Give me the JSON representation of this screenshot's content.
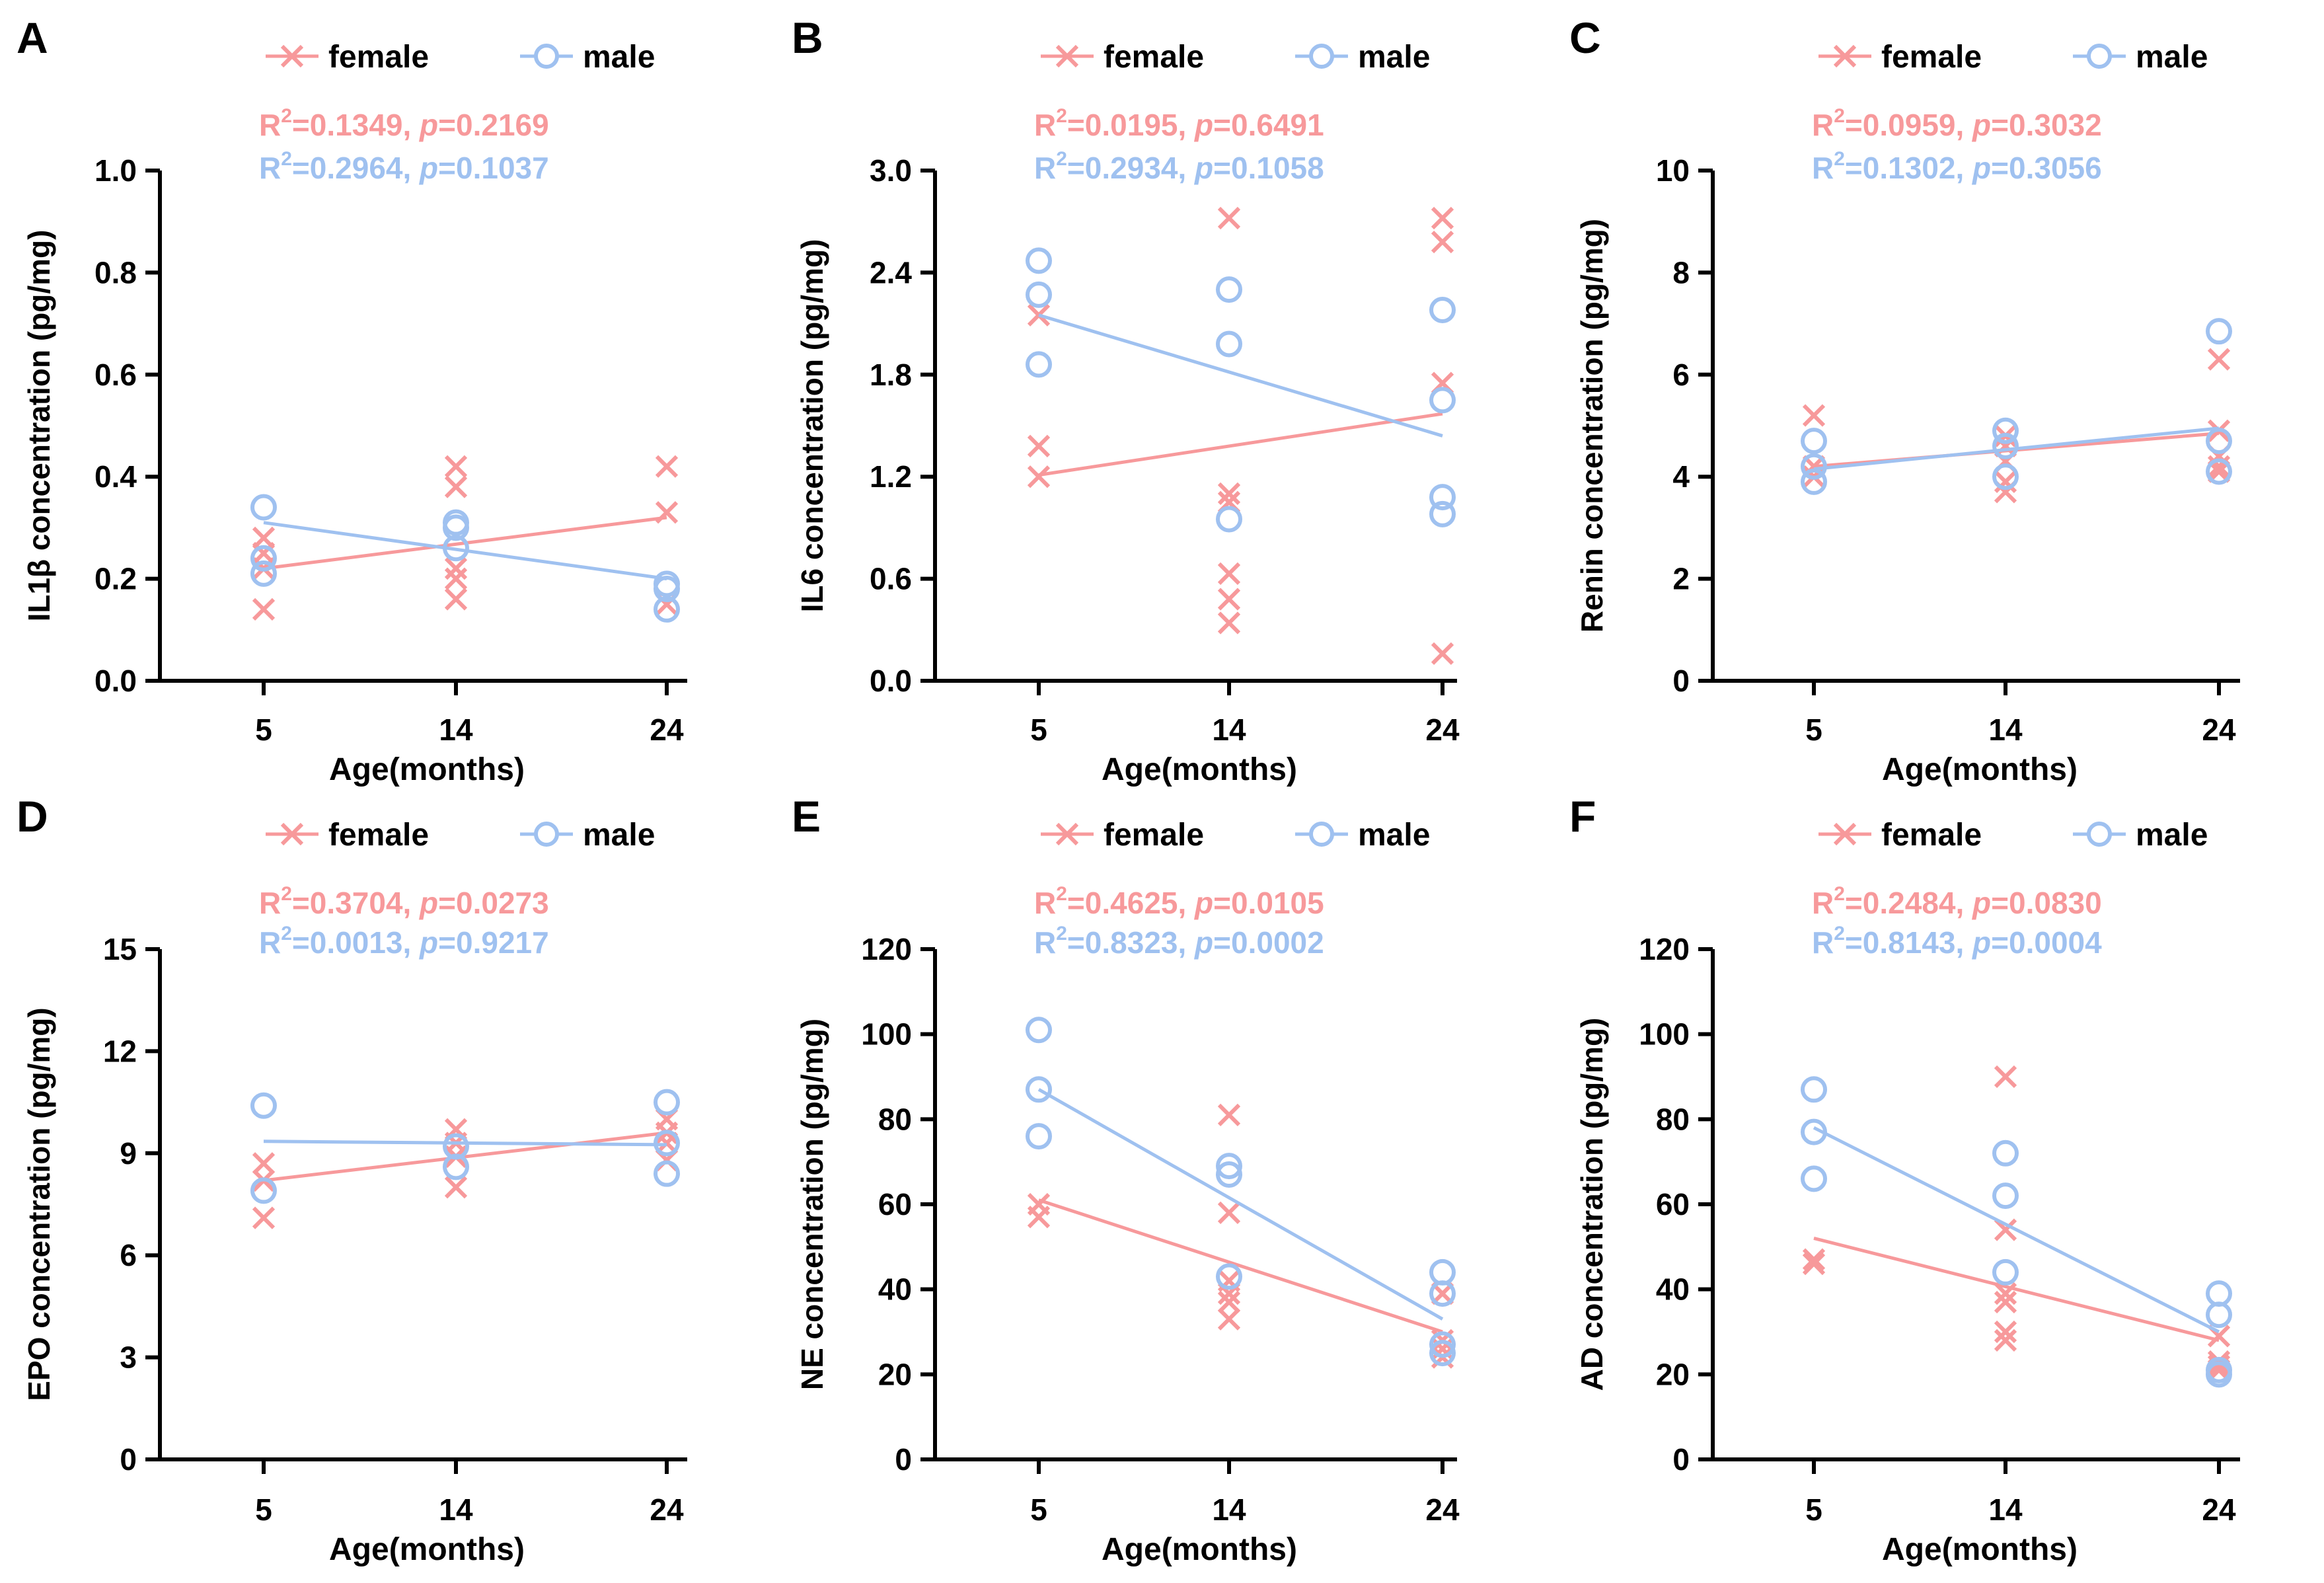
{
  "colors": {
    "female": "#f7999b",
    "male": "#9fc1f0",
    "axis": "#000000"
  },
  "legend": {
    "female_label": "female",
    "male_label": "male"
  },
  "chart_data": [
    {
      "type": "scatter",
      "panel_label": "A",
      "ylabel": "IL1β concentration (pg/mg)",
      "xlabel": "Age(months)",
      "categories": [
        "5",
        "14",
        "24"
      ],
      "ylim": [
        0,
        1.0
      ],
      "yticks": [
        "0.0",
        "0.2",
        "0.4",
        "0.6",
        "0.8",
        "1.0"
      ],
      "ytick_values": [
        0,
        0.2,
        0.4,
        0.6,
        0.8,
        1.0
      ],
      "stats": {
        "female": {
          "r2": "0.1349",
          "p": "0.2169"
        },
        "male": {
          "r2": "0.2964",
          "p": "0.1037"
        }
      },
      "series": [
        {
          "name": "female",
          "marker": "x",
          "points": [
            [
              5,
              0.28
            ],
            [
              5,
              0.25
            ],
            [
              5,
              0.22
            ],
            [
              5,
              0.14
            ],
            [
              14,
              0.42
            ],
            [
              14,
              0.38
            ],
            [
              14,
              0.22
            ],
            [
              14,
              0.2
            ],
            [
              14,
              0.16
            ],
            [
              24,
              0.42
            ],
            [
              24,
              0.33
            ],
            [
              24,
              0.15
            ]
          ],
          "fit": [
            [
              5,
              0.22
            ],
            [
              24,
              0.32
            ]
          ]
        },
        {
          "name": "male",
          "marker": "o",
          "points": [
            [
              5,
              0.34
            ],
            [
              5,
              0.24
            ],
            [
              5,
              0.21
            ],
            [
              14,
              0.31
            ],
            [
              14,
              0.3
            ],
            [
              14,
              0.26
            ],
            [
              24,
              0.19
            ],
            [
              24,
              0.18
            ],
            [
              24,
              0.14
            ]
          ],
          "fit": [
            [
              5,
              0.31
            ],
            [
              24,
              0.2
            ]
          ]
        }
      ]
    },
    {
      "type": "scatter",
      "panel_label": "B",
      "ylabel": "IL6 concentration (pg/mg)",
      "xlabel": "Age(months)",
      "categories": [
        "5",
        "14",
        "24"
      ],
      "ylim": [
        0,
        3.0
      ],
      "yticks": [
        "0.0",
        "0.6",
        "1.2",
        "1.8",
        "2.4",
        "3.0"
      ],
      "ytick_values": [
        0,
        0.6,
        1.2,
        1.8,
        2.4,
        3.0
      ],
      "stats": {
        "female": {
          "r2": "0.0195",
          "p": "0.6491"
        },
        "male": {
          "r2": "0.2934",
          "p": "0.1058"
        }
      },
      "series": [
        {
          "name": "female",
          "marker": "x",
          "points": [
            [
              5,
              2.15
            ],
            [
              5,
              1.38
            ],
            [
              5,
              1.2
            ],
            [
              14,
              2.72
            ],
            [
              14,
              1.1
            ],
            [
              14,
              1.05
            ],
            [
              14,
              0.63
            ],
            [
              14,
              0.48
            ],
            [
              14,
              0.34
            ],
            [
              24,
              2.72
            ],
            [
              24,
              2.58
            ],
            [
              24,
              1.75
            ],
            [
              24,
              0.16
            ]
          ],
          "fit": [
            [
              5,
              1.21
            ],
            [
              24,
              1.57
            ]
          ]
        },
        {
          "name": "male",
          "marker": "o",
          "points": [
            [
              5,
              2.47
            ],
            [
              5,
              2.27
            ],
            [
              5,
              1.86
            ],
            [
              14,
              2.3
            ],
            [
              14,
              1.98
            ],
            [
              14,
              0.95
            ],
            [
              24,
              2.18
            ],
            [
              24,
              1.65
            ],
            [
              24,
              1.08
            ],
            [
              24,
              0.98
            ]
          ],
          "fit": [
            [
              5,
              2.15
            ],
            [
              24,
              1.44
            ]
          ]
        }
      ]
    },
    {
      "type": "scatter",
      "panel_label": "C",
      "ylabel": "Renin concentration (pg/mg)",
      "xlabel": "Age(months)",
      "categories": [
        "5",
        "14",
        "24"
      ],
      "ylim": [
        0,
        10
      ],
      "yticks": [
        "0",
        "2",
        "4",
        "6",
        "8",
        "10"
      ],
      "ytick_values": [
        0,
        2,
        4,
        6,
        8,
        10
      ],
      "stats": {
        "female": {
          "r2": "0.0959",
          "p": "0.3032"
        },
        "male": {
          "r2": "0.1302",
          "p": "0.3056"
        }
      },
      "series": [
        {
          "name": "female",
          "marker": "x",
          "points": [
            [
              5,
              5.2
            ],
            [
              5,
              4.2
            ],
            [
              5,
              4.0
            ],
            [
              14,
              4.8
            ],
            [
              14,
              4.6
            ],
            [
              14,
              4.3
            ],
            [
              14,
              3.9
            ],
            [
              14,
              3.7
            ],
            [
              24,
              6.3
            ],
            [
              24,
              4.9
            ],
            [
              24,
              4.4
            ],
            [
              24,
              4.2
            ],
            [
              24,
              4.1
            ]
          ],
          "fit": [
            [
              5,
              4.2
            ],
            [
              24,
              4.85
            ]
          ]
        },
        {
          "name": "male",
          "marker": "o",
          "points": [
            [
              5,
              4.7
            ],
            [
              5,
              4.2
            ],
            [
              5,
              3.9
            ],
            [
              14,
              4.9
            ],
            [
              14,
              4.6
            ],
            [
              14,
              4.0
            ],
            [
              24,
              6.85
            ],
            [
              24,
              4.7
            ],
            [
              24,
              4.1
            ]
          ],
          "fit": [
            [
              5,
              4.15
            ],
            [
              24,
              4.95
            ]
          ]
        }
      ]
    },
    {
      "type": "scatter",
      "panel_label": "D",
      "ylabel": "EPO concentration (pg/mg)",
      "xlabel": "Age(months)",
      "categories": [
        "5",
        "14",
        "24"
      ],
      "ylim": [
        0,
        15
      ],
      "yticks": [
        "0",
        "3",
        "6",
        "9",
        "12",
        "15"
      ],
      "ytick_values": [
        0,
        3,
        6,
        9,
        12,
        15
      ],
      "stats": {
        "female": {
          "r2": "0.3704",
          "p": "0.0273"
        },
        "male": {
          "r2": "0.0013",
          "p": "0.9217"
        }
      },
      "series": [
        {
          "name": "female",
          "marker": "x",
          "points": [
            [
              5,
              8.7
            ],
            [
              5,
              8.2
            ],
            [
              5,
              7.1
            ],
            [
              14,
              9.7
            ],
            [
              14,
              9.3
            ],
            [
              14,
              8.9
            ],
            [
              14,
              8.0
            ],
            [
              24,
              10.0
            ],
            [
              24,
              9.6
            ],
            [
              24,
              9.3
            ],
            [
              24,
              8.8
            ]
          ],
          "fit": [
            [
              5,
              8.2
            ],
            [
              24,
              9.6
            ]
          ]
        },
        {
          "name": "male",
          "marker": "o",
          "points": [
            [
              5,
              10.4
            ],
            [
              5,
              7.9
            ],
            [
              14,
              9.2
            ],
            [
              14,
              8.6
            ],
            [
              24,
              10.5
            ],
            [
              24,
              9.3
            ],
            [
              24,
              8.4
            ]
          ],
          "fit": [
            [
              5,
              9.35
            ],
            [
              24,
              9.25
            ]
          ]
        }
      ]
    },
    {
      "type": "scatter",
      "panel_label": "E",
      "ylabel": "NE concentration (pg/mg)",
      "xlabel": "Age(months)",
      "categories": [
        "5",
        "14",
        "24"
      ],
      "ylim": [
        0,
        120
      ],
      "yticks": [
        "0",
        "20",
        "40",
        "60",
        "80",
        "100",
        "120"
      ],
      "ytick_values": [
        0,
        20,
        40,
        60,
        80,
        100,
        120
      ],
      "stats": {
        "female": {
          "r2": "0.4625",
          "p": "0.0105"
        },
        "male": {
          "r2": "0.8323",
          "p": "0.0002"
        }
      },
      "series": [
        {
          "name": "female",
          "marker": "x",
          "points": [
            [
              5,
              60
            ],
            [
              5,
              57
            ],
            [
              14,
              81
            ],
            [
              14,
              58
            ],
            [
              14,
              42
            ],
            [
              14,
              39
            ],
            [
              14,
              37
            ],
            [
              14,
              33
            ],
            [
              24,
              39
            ],
            [
              24,
              28
            ],
            [
              24,
              26
            ],
            [
              24,
              24
            ]
          ],
          "fit": [
            [
              5,
              61
            ],
            [
              24,
              30
            ]
          ]
        },
        {
          "name": "male",
          "marker": "o",
          "points": [
            [
              5,
              101
            ],
            [
              5,
              87
            ],
            [
              5,
              76
            ],
            [
              14,
              69
            ],
            [
              14,
              67
            ],
            [
              14,
              43
            ],
            [
              24,
              44
            ],
            [
              24,
              39
            ],
            [
              24,
              27
            ],
            [
              24,
              25
            ]
          ],
          "fit": [
            [
              5,
              87
            ],
            [
              24,
              33
            ]
          ]
        }
      ]
    },
    {
      "type": "scatter",
      "panel_label": "F",
      "ylabel": "AD concentration (pg/mg)",
      "xlabel": "Age(months)",
      "categories": [
        "5",
        "14",
        "24"
      ],
      "ylim": [
        0,
        120
      ],
      "yticks": [
        "0",
        "20",
        "40",
        "60",
        "80",
        "100",
        "120"
      ],
      "ytick_values": [
        0,
        20,
        40,
        60,
        80,
        100,
        120
      ],
      "stats": {
        "female": {
          "r2": "0.2484",
          "p": "0.0830"
        },
        "male": {
          "r2": "0.8143",
          "p": "0.0004"
        }
      },
      "series": [
        {
          "name": "female",
          "marker": "x",
          "points": [
            [
              5,
              47
            ],
            [
              5,
              46
            ],
            [
              14,
              90
            ],
            [
              14,
              54
            ],
            [
              14,
              39
            ],
            [
              14,
              37
            ],
            [
              14,
              30
            ],
            [
              14,
              28
            ],
            [
              24,
              29
            ],
            [
              24,
              23
            ],
            [
              24,
              22
            ],
            [
              24,
              21
            ]
          ],
          "fit": [
            [
              5,
              52
            ],
            [
              24,
              28
            ]
          ]
        },
        {
          "name": "male",
          "marker": "o",
          "points": [
            [
              5,
              87
            ],
            [
              5,
              77
            ],
            [
              5,
              66
            ],
            [
              14,
              72
            ],
            [
              14,
              62
            ],
            [
              14,
              44
            ],
            [
              24,
              39
            ],
            [
              24,
              34
            ],
            [
              24,
              21
            ],
            [
              24,
              20
            ]
          ],
          "fit": [
            [
              5,
              78
            ],
            [
              24,
              30
            ]
          ]
        }
      ]
    }
  ]
}
